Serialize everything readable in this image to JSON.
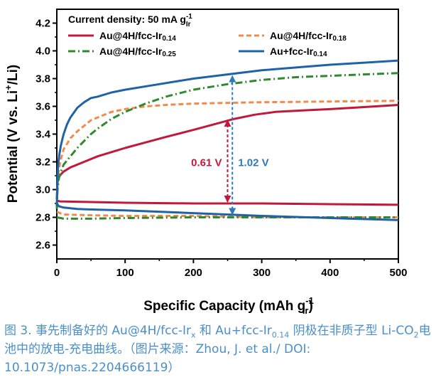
{
  "chart_data": {
    "type": "line",
    "title": "",
    "xlabel": "Specific Capacity (mAh g",
    "xlabel_sup": "-1",
    "xlabel_sub": "Ir",
    "xlabel_end": ")",
    "ylabel": "Potential (V vs. Li",
    "ylabel_sup": "+",
    "ylabel_end": "/Li)",
    "xlim": [
      0,
      500
    ],
    "ylim": [
      2.5,
      4.3
    ],
    "xticks": [
      0,
      100,
      200,
      300,
      400,
      500
    ],
    "yticks": [
      2.6,
      2.8,
      3.0,
      3.2,
      3.4,
      3.6,
      3.8,
      4.0,
      4.2
    ],
    "legend_title": "Current density: 50 mA g",
    "legend_title_sup": "-1",
    "legend_title_sub": "Ir",
    "series": [
      {
        "name": "Au@4H/fcc-Ir",
        "name_sub": "0.14",
        "color": "#c0193a",
        "style": "solid",
        "charge_x": [
          0,
          1,
          3,
          6,
          10,
          20,
          40,
          60,
          80,
          100,
          130,
          160,
          200,
          230,
          260,
          290,
          320,
          360,
          400,
          450,
          500
        ],
        "charge_y": [
          2.93,
          3.05,
          3.09,
          3.11,
          3.13,
          3.16,
          3.2,
          3.24,
          3.27,
          3.3,
          3.34,
          3.38,
          3.43,
          3.47,
          3.51,
          3.54,
          3.56,
          3.57,
          3.58,
          3.595,
          3.61
        ],
        "discharge_x": [
          0,
          5,
          50,
          100,
          200,
          300,
          400,
          500
        ],
        "discharge_y": [
          2.92,
          2.915,
          2.91,
          2.905,
          2.9,
          2.9,
          2.895,
          2.89
        ]
      },
      {
        "name": "Au@4H/fcc-Ir",
        "name_sub": "0.18",
        "color": "#f08c4b",
        "style": "dash",
        "charge_x": [
          0,
          1,
          3,
          6,
          10,
          15,
          20,
          30,
          40,
          50,
          60,
          80,
          100,
          130,
          160,
          200,
          300,
          400,
          500
        ],
        "charge_y": [
          2.88,
          3.05,
          3.15,
          3.22,
          3.29,
          3.33,
          3.37,
          3.42,
          3.46,
          3.5,
          3.52,
          3.56,
          3.58,
          3.6,
          3.61,
          3.62,
          3.63,
          3.635,
          3.64
        ],
        "discharge_x": [
          0,
          10,
          50,
          100,
          200,
          300,
          400,
          500
        ],
        "discharge_y": [
          2.84,
          2.82,
          2.815,
          2.81,
          2.81,
          2.8,
          2.8,
          2.8
        ]
      },
      {
        "name": "Au@4H/fcc-Ir",
        "name_sub": "0.25",
        "color": "#2f8a2f",
        "style": "dashdot",
        "charge_x": [
          0,
          1,
          3,
          6,
          10,
          15,
          20,
          30,
          40,
          50,
          60,
          80,
          100,
          130,
          160,
          200,
          250,
          300,
          350,
          400,
          450,
          500
        ],
        "charge_y": [
          2.86,
          3.0,
          3.08,
          3.13,
          3.18,
          3.21,
          3.24,
          3.3,
          3.35,
          3.4,
          3.44,
          3.51,
          3.56,
          3.62,
          3.67,
          3.72,
          3.76,
          3.79,
          3.81,
          3.82,
          3.83,
          3.84
        ],
        "discharge_x": [
          0,
          10,
          50,
          100,
          200,
          300,
          400,
          500
        ],
        "discharge_y": [
          2.8,
          2.79,
          2.79,
          2.795,
          2.8,
          2.8,
          2.8,
          2.8
        ]
      },
      {
        "name": "Au+fcc-Ir",
        "name_sub": "0.14",
        "color": "#1f63a6",
        "style": "solid",
        "charge_x": [
          0,
          1,
          2,
          4,
          6,
          10,
          15,
          20,
          30,
          40,
          50,
          60,
          80,
          100,
          150,
          200,
          250,
          300,
          350,
          400,
          450,
          500
        ],
        "charge_y": [
          2.88,
          3.1,
          3.18,
          3.26,
          3.32,
          3.4,
          3.47,
          3.52,
          3.59,
          3.63,
          3.66,
          3.67,
          3.7,
          3.72,
          3.76,
          3.8,
          3.83,
          3.86,
          3.88,
          3.9,
          3.915,
          3.93
        ],
        "discharge_x": [
          0,
          3,
          10,
          30,
          60,
          100,
          200,
          300,
          400,
          500
        ],
        "discharge_y": [
          2.9,
          2.88,
          2.87,
          2.86,
          2.855,
          2.85,
          2.83,
          2.81,
          2.795,
          2.78
        ]
      }
    ],
    "annotations": [
      {
        "text": "0.61 V",
        "x": 250,
        "y_low": 2.9,
        "y_high": 3.51,
        "color": "#c0193a",
        "label_side": "left"
      },
      {
        "text": "1.02 V",
        "x": 257,
        "y_low": 2.81,
        "y_high": 3.83,
        "color": "#2e79b9",
        "label_side": "right"
      }
    ]
  },
  "caption": {
    "seg1": "图 3. 事先制备好的 Au@4H/fcc-Ir",
    "sub1": "x",
    "seg2": " 和 Au+fcc-Ir",
    "sub2": "0.14",
    "seg3": " 阴极在非质子型 Li-CO",
    "sub3": "2",
    "seg4": "电池中的放电-充电曲线。（图片来源：Zhou, J. et al./ DOI: 10.1073/pnas.2204666119）"
  }
}
